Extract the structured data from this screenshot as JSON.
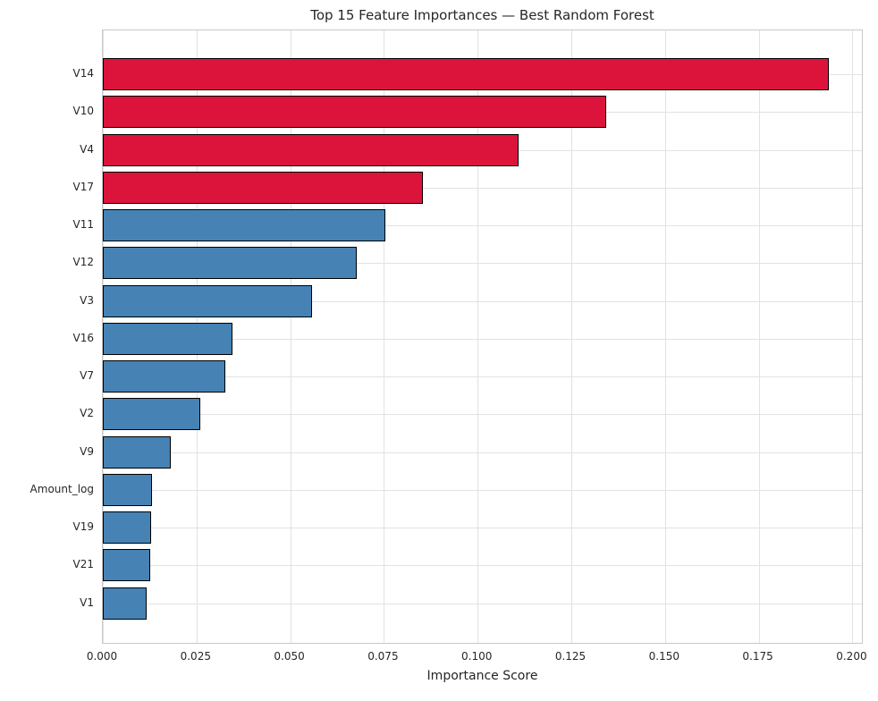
{
  "colors": {
    "top_feature_bar": "#DC143C",
    "other_feature_bar": "#4682B4",
    "bar_edge": "#000000",
    "grid": "#e2e2e2",
    "spine": "#c9c9c9",
    "text": "#262626",
    "background": "#ffffff"
  },
  "chart_data": {
    "type": "bar",
    "orientation": "horizontal",
    "title": "Top 15 Feature Importances — Best Random Forest",
    "xlabel": "Importance Score",
    "ylabel": "",
    "categories": [
      "V14",
      "V10",
      "V4",
      "V17",
      "V11",
      "V12",
      "V3",
      "V16",
      "V7",
      "V2",
      "V9",
      "Amount_log",
      "V19",
      "V21",
      "V1"
    ],
    "values": [
      0.1936,
      0.1343,
      0.1109,
      0.0855,
      0.0753,
      0.0678,
      0.0557,
      0.0346,
      0.0327,
      0.0259,
      0.0181,
      0.0132,
      0.0129,
      0.0127,
      0.0118
    ],
    "bar_colors": [
      "#DC143C",
      "#DC143C",
      "#DC143C",
      "#DC143C",
      "#4682B4",
      "#4682B4",
      "#4682B4",
      "#4682B4",
      "#4682B4",
      "#4682B4",
      "#4682B4",
      "#4682B4",
      "#4682B4",
      "#4682B4",
      "#4682B4"
    ],
    "xlim": [
      0,
      0.203
    ],
    "xticks": [
      0.0,
      0.025,
      0.05,
      0.075,
      0.1,
      0.125,
      0.15,
      0.175,
      0.2
    ],
    "xtick_labels": [
      "0.000",
      "0.025",
      "0.050",
      "0.075",
      "0.100",
      "0.125",
      "0.150",
      "0.175",
      "0.200"
    ],
    "grid": true,
    "legend": "none"
  }
}
